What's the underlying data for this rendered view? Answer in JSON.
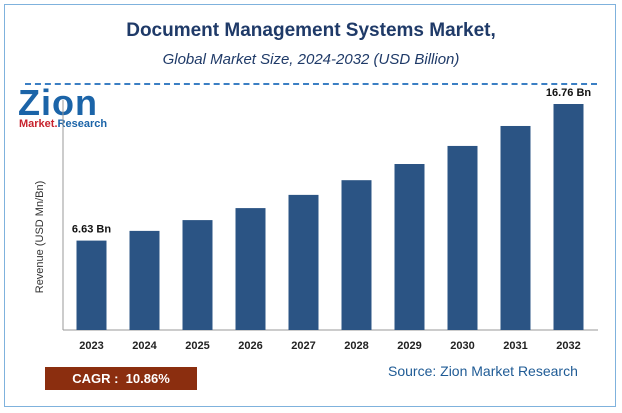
{
  "header": {
    "title": "Document Management Systems Market,",
    "subtitle": "Global Market Size, 2024-2032 (USD Billion)"
  },
  "logo": {
    "name": "Zion",
    "tagline_a": "Market.",
    "tagline_b": "Research"
  },
  "footer": {
    "cagr_label": "CAGR :",
    "cagr_value": "10.86%",
    "source": "Source: Zion Market Research"
  },
  "colors": {
    "bar": "#2b5484",
    "title": "#1f3a68",
    "cagr_bg": "#8b2e0f"
  },
  "chart_data": {
    "type": "bar",
    "categories": [
      "2023",
      "2024",
      "2025",
      "2026",
      "2027",
      "2028",
      "2029",
      "2030",
      "2031",
      "2032"
    ],
    "values": [
      6.63,
      7.35,
      8.15,
      9.04,
      10.02,
      11.11,
      12.31,
      13.65,
      15.13,
      16.76
    ],
    "data_labels": [
      {
        "index": 0,
        "text": "6.63 Bn"
      },
      {
        "index": 9,
        "text": "16.76 Bn"
      }
    ],
    "ylabel": "Revenue (USD Mn/Bn)",
    "ylim": [
      0,
      17
    ],
    "grid": false,
    "legend": "none"
  }
}
